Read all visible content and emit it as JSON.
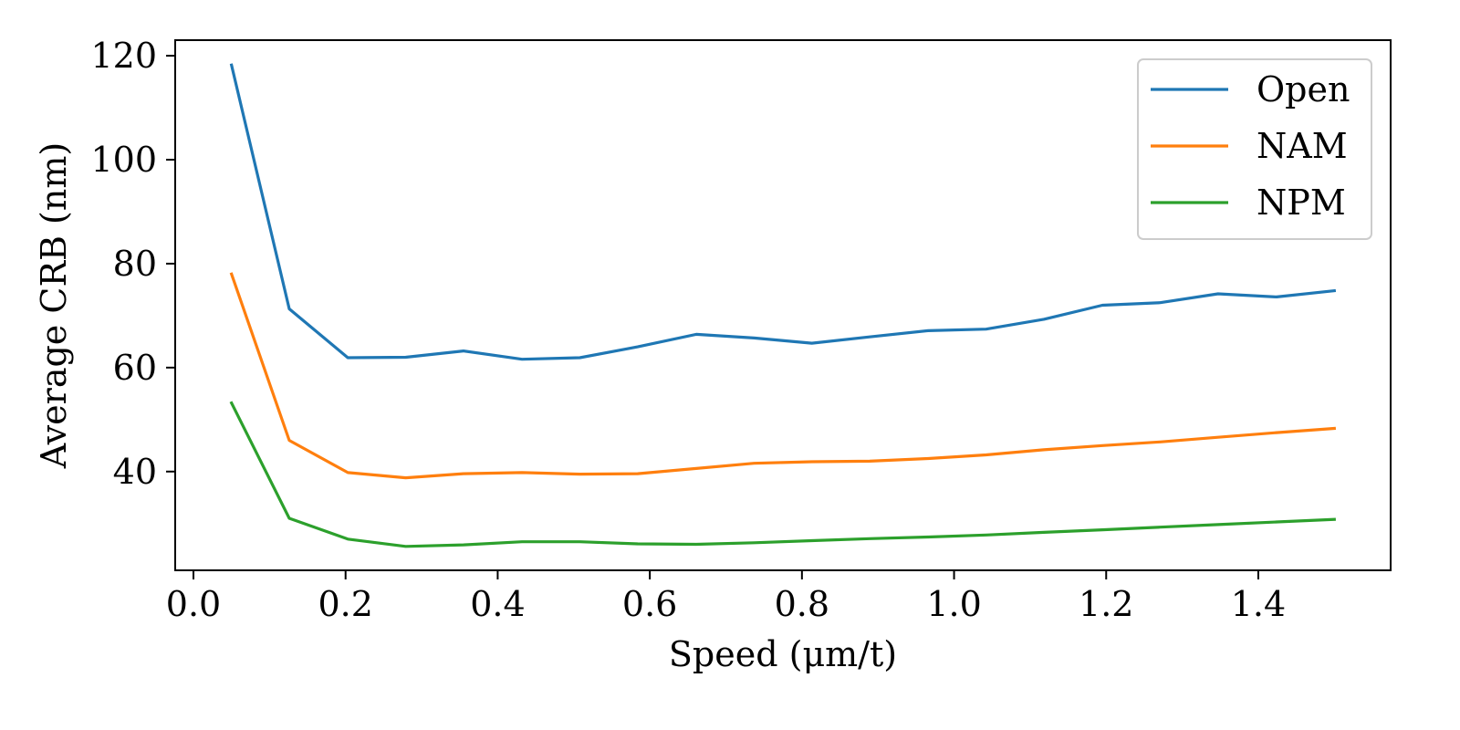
{
  "chart_data": {
    "type": "line",
    "xlabel": "Speed (μm/t)",
    "ylabel": "Average CRB (nm)",
    "xlim": [
      -0.024,
      1.574
    ],
    "ylim": [
      21,
      123
    ],
    "xticks": [
      0.0,
      0.2,
      0.4,
      0.6,
      0.8,
      1.0,
      1.2,
      1.4
    ],
    "xtick_labels": [
      "0.0",
      "0.2",
      "0.4",
      "0.6",
      "0.8",
      "1.0",
      "1.2",
      "1.4"
    ],
    "yticks": [
      40,
      60,
      80,
      100,
      120
    ],
    "ytick_labels": [
      "40",
      "60",
      "80",
      "100",
      "120"
    ],
    "grid": false,
    "legend_position": "top-right",
    "x": [
      0.05,
      0.126,
      0.203,
      0.279,
      0.355,
      0.432,
      0.508,
      0.584,
      0.661,
      0.737,
      0.813,
      0.889,
      0.966,
      1.042,
      1.118,
      1.195,
      1.271,
      1.347,
      1.424,
      1.5
    ],
    "series": [
      {
        "name": "Open",
        "color": "#1f77b4",
        "values": [
          118.2,
          71.3,
          61.9,
          62.0,
          63.2,
          61.6,
          61.9,
          64.0,
          66.4,
          65.7,
          64.7,
          65.9,
          67.1,
          67.4,
          69.3,
          72.0,
          72.5,
          74.2,
          73.6,
          74.8
        ]
      },
      {
        "name": "NAM",
        "color": "#ff7f0e",
        "values": [
          78.0,
          46.0,
          39.8,
          38.8,
          39.6,
          39.8,
          39.5,
          39.6,
          40.6,
          41.6,
          41.9,
          42.0,
          42.5,
          43.2,
          44.2,
          45.0,
          45.7,
          46.6,
          47.5,
          48.3
        ]
      },
      {
        "name": "NPM",
        "color": "#2ca02c",
        "values": [
          53.2,
          31.0,
          27.0,
          25.6,
          25.9,
          26.5,
          26.5,
          26.1,
          26.0,
          26.3,
          26.7,
          27.1,
          27.4,
          27.8,
          28.3,
          28.8,
          29.3,
          29.8,
          30.3,
          30.8
        ]
      }
    ]
  }
}
